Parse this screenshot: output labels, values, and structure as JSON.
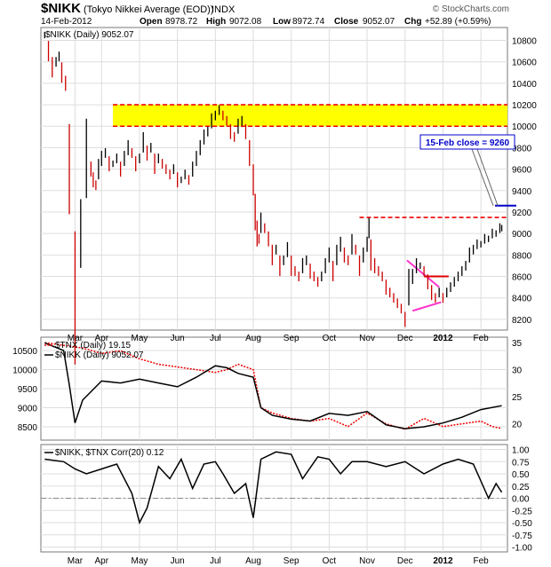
{
  "header": {
    "title": "$NIKK",
    "subtitle": "(Tokyo Nikkei Average (EOD))",
    "exchange": "INDX",
    "copyright": "© StockCharts.com",
    "date": "14-Feb-2012",
    "open_label": "Open",
    "open": "8978.72",
    "high_label": "High",
    "high": "9072.08",
    "low_label": "Low",
    "low": "8972.74",
    "close_label": "Close",
    "close": "9052.07",
    "chg_label": "Chg",
    "chg": "+52.89 (+0.59%)"
  },
  "colors": {
    "price_up": "#000000",
    "price_down": "#cc0000",
    "resistance_zone": "#ffff00",
    "dashed_line": "#ee0000",
    "channel": "#ff33cc",
    "breakout": "#dd0000",
    "target": "#0000cc",
    "tnx_line": "#ee0000",
    "corr_line": "#000000",
    "grid": "#dddddd"
  },
  "chart_data": [
    {
      "type": "line",
      "panel": "price",
      "legend": "$NIKK (Daily) 9052.07",
      "y_ticks": [
        8200,
        8400,
        8600,
        8800,
        9000,
        9200,
        9400,
        9600,
        9800,
        10000,
        10200,
        10400,
        10600,
        10800
      ],
      "ylim": [
        8100,
        10920
      ],
      "x_month_labels": [
        "Mar",
        "Apr",
        "May",
        "Jun",
        "Jul",
        "Aug",
        "Sep",
        "Oct",
        "Nov",
        "Dec",
        "2012",
        "Feb"
      ],
      "x_month_index": [
        0.3,
        1,
        2,
        3,
        4,
        5,
        6,
        7,
        8,
        9,
        10,
        11
      ],
      "xlim": [
        -0.6,
        11.7
      ],
      "series": [
        {
          "name": "$NIKK (Daily)",
          "x": [
            -0.5,
            -0.4,
            -0.3,
            -0.2,
            -0.12,
            -0.05,
            0.05,
            0.15,
            0.3,
            0.45,
            0.6,
            0.72,
            0.78,
            0.85,
            0.92,
            1.0,
            1.1,
            1.2,
            1.3,
            1.4,
            1.5,
            1.6,
            1.7,
            1.8,
            1.9,
            2.0,
            2.1,
            2.2,
            2.3,
            2.4,
            2.5,
            2.6,
            2.7,
            2.8,
            2.9,
            3.0,
            3.1,
            3.2,
            3.3,
            3.4,
            3.5,
            3.6,
            3.7,
            3.8,
            3.9,
            4.0,
            4.1,
            4.2,
            4.3,
            4.4,
            4.5,
            4.6,
            4.7,
            4.8,
            4.9,
            5.0,
            5.05,
            5.1,
            5.15,
            5.2,
            5.3,
            5.4,
            5.5,
            5.6,
            5.7,
            5.8,
            5.9,
            6.0,
            6.1,
            6.2,
            6.3,
            6.4,
            6.5,
            6.6,
            6.7,
            6.8,
            6.9,
            7.0,
            7.1,
            7.2,
            7.3,
            7.4,
            7.5,
            7.6,
            7.7,
            7.8,
            7.9,
            8.0,
            8.05,
            8.1,
            8.2,
            8.3,
            8.4,
            8.5,
            8.6,
            8.7,
            8.8,
            8.9,
            9.0,
            9.1,
            9.2,
            9.3,
            9.4,
            9.5,
            9.6,
            9.7,
            9.8,
            9.9,
            10.0,
            10.1,
            10.2,
            10.3,
            10.4,
            10.5,
            10.6,
            10.7,
            10.8,
            10.9,
            11.0,
            11.1,
            11.2,
            11.3,
            11.4,
            11.5,
            11.55
          ],
          "y": [
            10850,
            10700,
            10550,
            10600,
            10650,
            10500,
            10400,
            9600,
            8400,
            9000,
            9700,
            9600,
            9500,
            9450,
            9600,
            9700,
            9750,
            9650,
            9650,
            9700,
            9600,
            9700,
            9800,
            9750,
            9650,
            9700,
            9850,
            9750,
            9800,
            9650,
            9700,
            9650,
            9600,
            9550,
            9600,
            9500,
            9500,
            9550,
            9500,
            9600,
            9700,
            9800,
            9900,
            9950,
            10050,
            10100,
            10150,
            10100,
            10050,
            9950,
            9900,
            10000,
            10050,
            9950,
            9750,
            9500,
            9200,
            9000,
            8950,
            9100,
            9050,
            8950,
            8800,
            8850,
            8700,
            8750,
            8850,
            8700,
            8650,
            8600,
            8700,
            8750,
            8650,
            8600,
            8550,
            8600,
            8700,
            8800,
            8650,
            8800,
            8900,
            8800,
            8750,
            8900,
            8850,
            8700,
            8800,
            8900,
            9050,
            8800,
            8700,
            8650,
            8600,
            8500,
            8450,
            8400,
            8350,
            8300,
            8200,
            8500,
            8600,
            8700,
            8700,
            8650,
            8550,
            8450,
            8400,
            8450,
            8400,
            8450,
            8500,
            8550,
            8600,
            8650,
            8700,
            8800,
            8850,
            8900,
            8900,
            8950,
            8950,
            9000,
            9000,
            9050,
            9050
          ]
        }
      ],
      "annotations": [
        {
          "type": "zone",
          "label": "",
          "y_low": 10000,
          "y_high": 10200,
          "x_start": 1.3,
          "x_end": 11.7
        },
        {
          "type": "dashed",
          "y": 10200,
          "x_start": 1.3,
          "x_end": 11.7
        },
        {
          "type": "dashed",
          "y": 10000,
          "x_start": 1.3,
          "x_end": 11.7
        },
        {
          "type": "dashed",
          "y": 9150,
          "x_start": 7.8,
          "x_end": 11.7
        },
        {
          "type": "target",
          "label": "15-Feb close = 9260",
          "y": 9260
        }
      ]
    },
    {
      "type": "line",
      "panel": "tnx",
      "legend_tnx": "$TNX (Daily) 19.15",
      "legend_nikk": "$NIKK (Daily) 9052.07",
      "left_ticks": [
        8500,
        9000,
        9500,
        10000,
        10500
      ],
      "right_ticks": [
        20,
        25,
        30,
        35
      ],
      "series": [
        {
          "name": "$TNX (Daily)",
          "axis": "right",
          "x": [
            -0.5,
            0.0,
            0.5,
            1.0,
            1.5,
            2.0,
            2.5,
            3.0,
            3.5,
            4.0,
            4.3,
            4.6,
            5.0,
            5.2,
            5.5,
            6.0,
            6.5,
            7.0,
            7.5,
            8.0,
            8.5,
            9.0,
            9.5,
            10.0,
            10.5,
            11.0,
            11.3,
            11.55
          ],
          "y": [
            35,
            34.5,
            34,
            33,
            33.5,
            32,
            31,
            30.5,
            30,
            29.5,
            30,
            31,
            30,
            23,
            22,
            21,
            20.5,
            21,
            19.5,
            22,
            20,
            19,
            21,
            19.5,
            20,
            20.5,
            19.5,
            19.15
          ]
        },
        {
          "name": "$NIKK (Daily)",
          "axis": "left",
          "x": [
            -0.5,
            0.0,
            0.15,
            0.3,
            0.5,
            1.0,
            1.5,
            2.0,
            2.5,
            3.0,
            3.5,
            4.0,
            4.3,
            4.6,
            5.0,
            5.2,
            5.5,
            6.0,
            6.5,
            7.0,
            7.5,
            8.0,
            8.5,
            9.0,
            9.5,
            10.0,
            10.5,
            11.0,
            11.55
          ],
          "y": [
            10700,
            10500,
            9600,
            8600,
            9200,
            9700,
            9650,
            9750,
            9650,
            9550,
            9800,
            10100,
            10050,
            9900,
            9800,
            9000,
            8800,
            8700,
            8650,
            8850,
            8800,
            8900,
            8550,
            8450,
            8500,
            8600,
            8750,
            8950,
            9052
          ]
        }
      ]
    },
    {
      "type": "line",
      "panel": "correlation",
      "legend": "$NIKK, $TNX Corr(20) 0.12",
      "y_ticks": [
        1.0,
        0.75,
        0.5,
        0.25,
        0.0,
        -0.25,
        -0.5,
        -0.75,
        -1.0
      ],
      "y_tick_labels": [
        "1.00",
        "0.75",
        "0.50",
        "0.25",
        "0.00",
        "-0.25",
        "-0.50",
        "-0.75",
        "-1.00"
      ],
      "ylim": [
        -1.1,
        1.1
      ],
      "series": [
        {
          "name": "$NIKK, $TNX Corr(20)",
          "x": [
            -0.5,
            0.0,
            0.3,
            0.6,
            1.0,
            1.4,
            1.8,
            2.0,
            2.2,
            2.5,
            2.8,
            3.1,
            3.4,
            3.7,
            4.0,
            4.2,
            4.5,
            4.8,
            5.0,
            5.2,
            5.6,
            6.0,
            6.3,
            6.7,
            7.0,
            7.3,
            7.6,
            8.0,
            8.5,
            9.0,
            9.5,
            10.0,
            10.4,
            10.8,
            11.2,
            11.4,
            11.55
          ],
          "y": [
            0.8,
            0.75,
            0.6,
            0.5,
            0.6,
            0.7,
            0.1,
            -0.5,
            -0.2,
            0.65,
            0.4,
            0.8,
            0.2,
            0.7,
            0.75,
            0.5,
            0.1,
            0.3,
            -0.4,
            0.8,
            0.95,
            0.9,
            0.4,
            0.85,
            0.8,
            0.5,
            0.75,
            0.75,
            0.65,
            0.75,
            0.5,
            0.7,
            0.8,
            0.7,
            0.0,
            0.3,
            0.12
          ]
        }
      ]
    }
  ]
}
